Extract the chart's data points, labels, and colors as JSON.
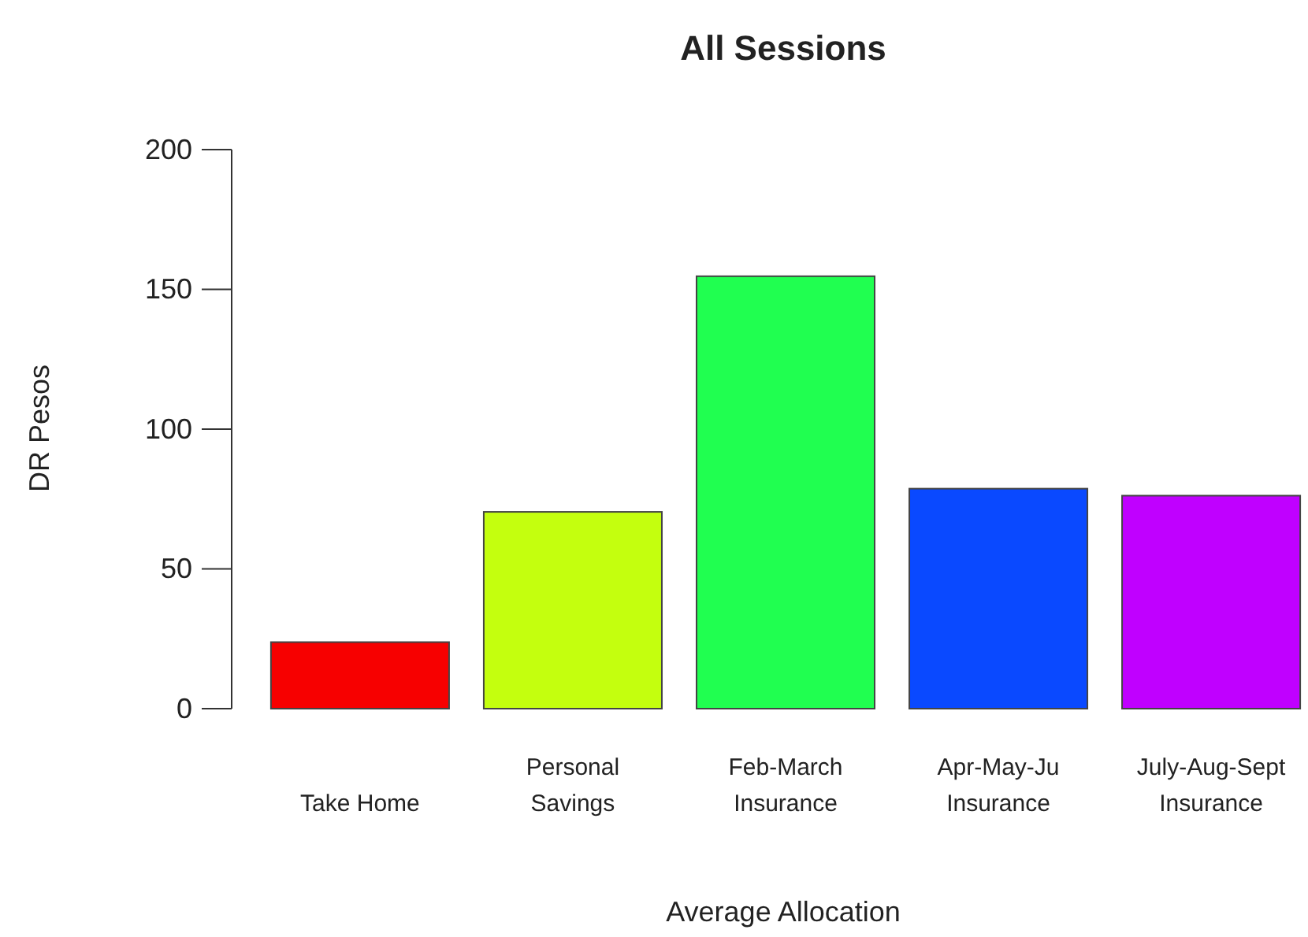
{
  "chart_data": {
    "type": "bar",
    "title": "All Sessions",
    "xlabel": "Average Allocation",
    "ylabel": "DR Pesos",
    "categories": [
      "Take Home",
      "Personal\nSavings",
      "Feb-March\nInsurance",
      "Apr-May-Ju\nInsurance",
      "July-Aug-Sept\nInsurance"
    ],
    "values": [
      23.8,
      70.4,
      154.7,
      78.7,
      76.2
    ],
    "colors": [
      "#f70000",
      "#c4ff0e",
      "#20ff50",
      "#0a49ff",
      "#c000ff"
    ],
    "ylim": [
      0,
      200
    ],
    "yticks": [
      0,
      50,
      100,
      150,
      200
    ]
  }
}
